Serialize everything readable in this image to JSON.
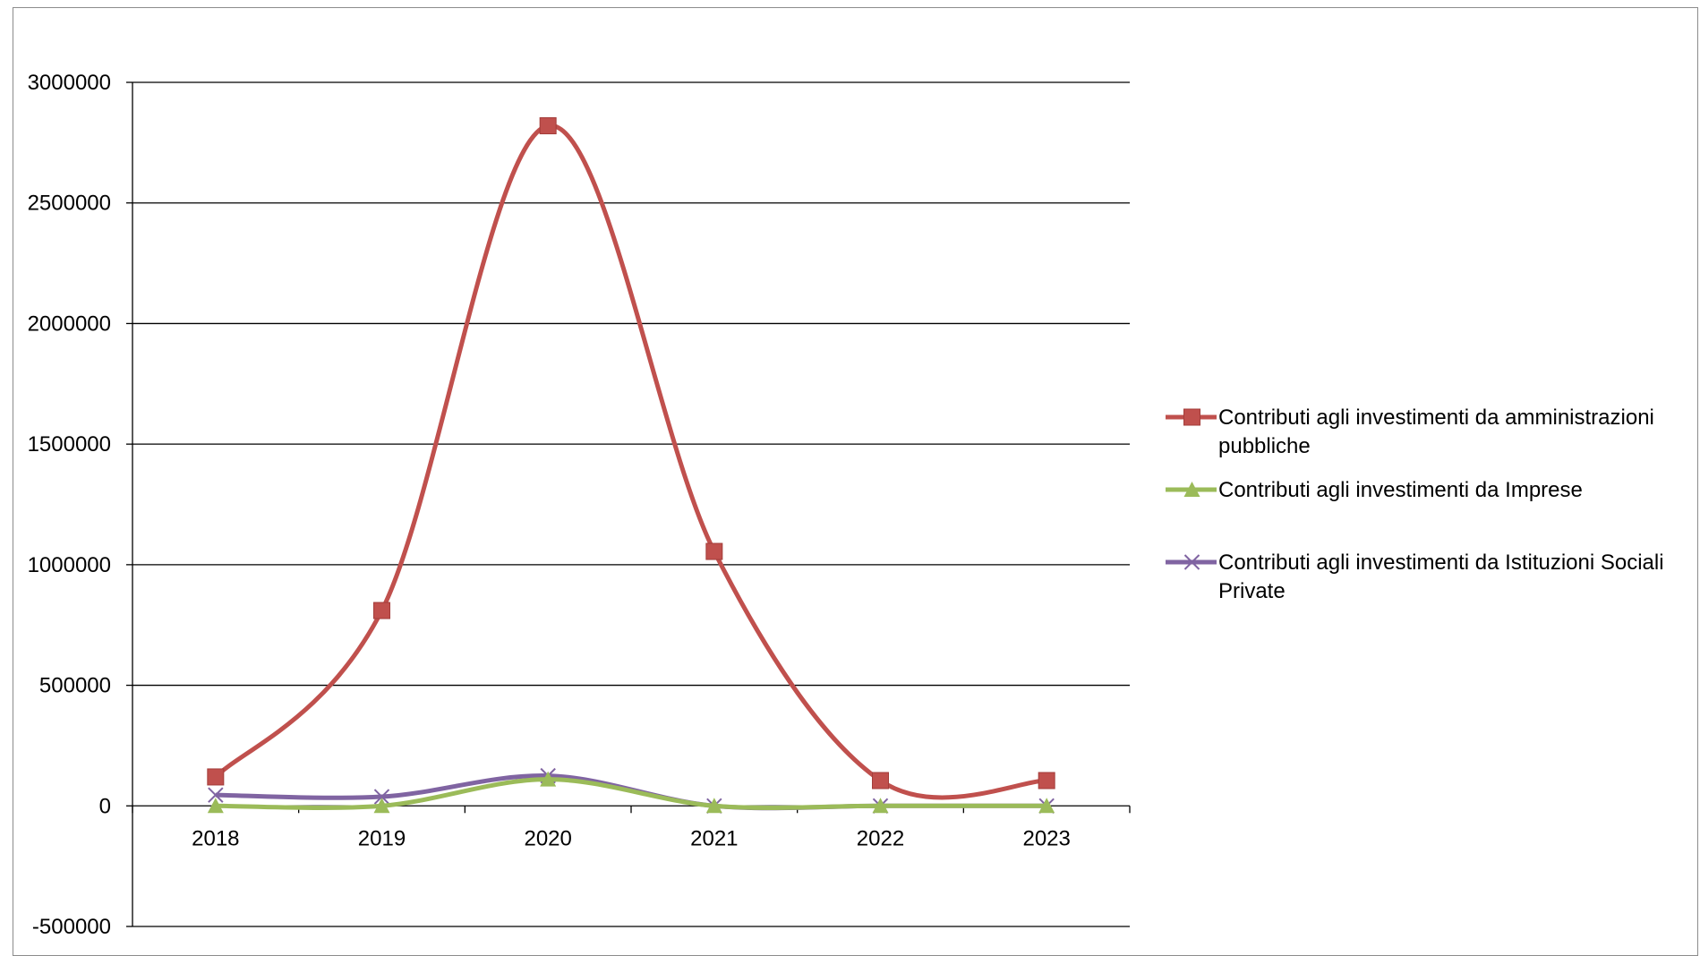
{
  "chart_data": {
    "type": "line",
    "title": "",
    "xlabel": "",
    "ylabel": "",
    "categories": [
      "2018",
      "2019",
      "2020",
      "2021",
      "2022",
      "2023"
    ],
    "ylim": [
      -500000,
      3000000
    ],
    "yticks": [
      3000000,
      2500000,
      2000000,
      1500000,
      1000000,
      500000,
      0,
      -500000
    ],
    "ytick_labels": [
      "3000000",
      "2500000",
      "2000000",
      "1500000",
      "1000000",
      "500000",
      "0",
      "-500000"
    ],
    "grid": true,
    "legend_position": "right",
    "smooth": true,
    "series": [
      {
        "name": "Contributi agli investimenti da amministrazioni pubbliche",
        "legend_lines": [
          "Contributi agli investimenti da amministrazioni",
          "pubbliche"
        ],
        "values": [
          120000,
          810000,
          2820000,
          1055000,
          105000,
          105000
        ],
        "color": "#c0504d",
        "marker": "square"
      },
      {
        "name": "Contributi agli investimenti da Imprese",
        "legend_lines": [
          "Contributi agli investimenti da Imprese"
        ],
        "values": [
          0,
          0,
          110000,
          0,
          0,
          0
        ],
        "color": "#9bbb59",
        "marker": "triangle"
      },
      {
        "name": "Contributi agli investimenti da Istituzioni Sociali Private",
        "legend_lines": [
          "Contributi agli investimenti da Istituzioni Sociali",
          "Private"
        ],
        "values": [
          45000,
          38000,
          125000,
          0,
          0,
          0
        ],
        "color": "#8064a2",
        "marker": "x"
      }
    ]
  }
}
